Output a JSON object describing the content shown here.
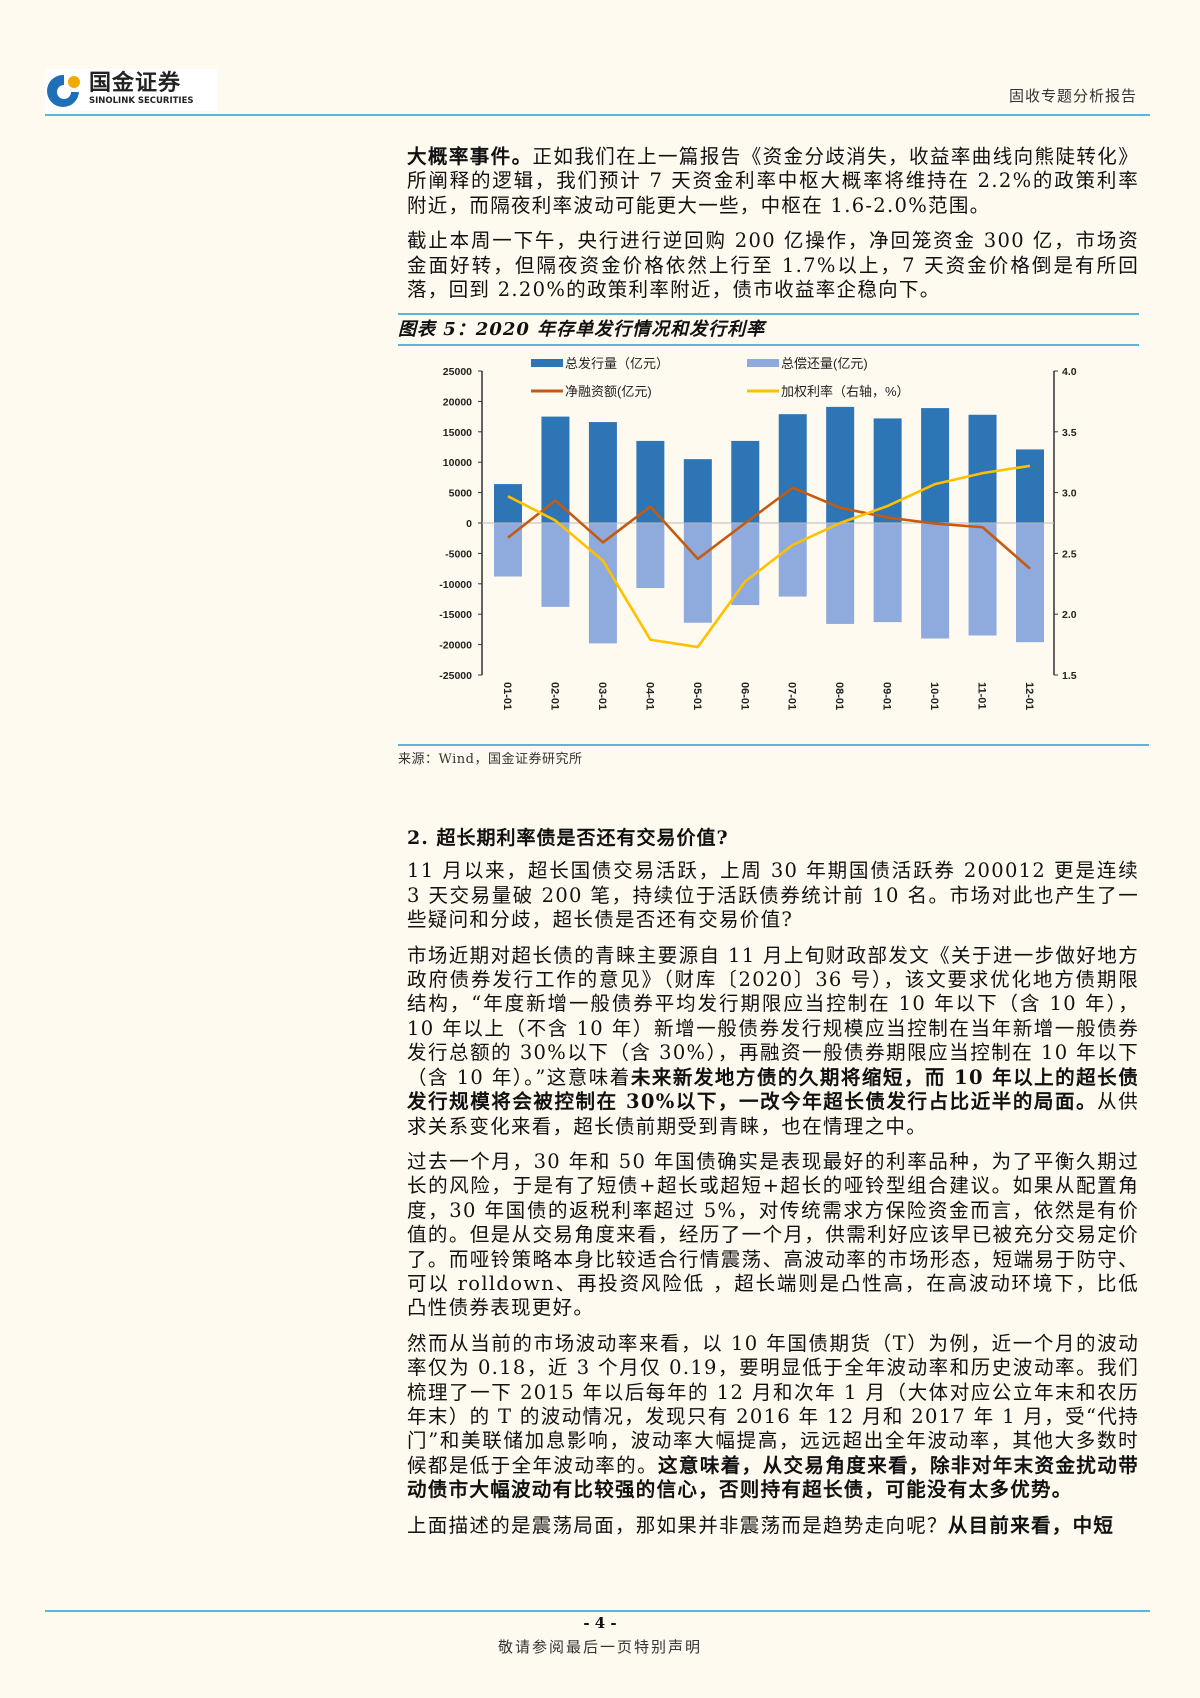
{
  "header": {
    "logo_cn": "国金证券",
    "logo_en": "SINOLINK SECURITIES",
    "report_type": "固收专题分析报告"
  },
  "paragraphs": [
    [
      {
        "t": "大概率事件。",
        "b": true
      },
      {
        "t": "正如我们在上一篇报告《资金分歧消失，收益率曲线向熊陡转化》所阐释的逻辑，我们预计 7 天资金利率中枢大概率将维持在 2.2%的政策利率附近，而隔夜利率波动可能更大一些，中枢在 1.6-2.0%范围。",
        "b": false
      }
    ],
    [
      {
        "t": "截止本周一下午，央行进行逆回购 200 亿操作，净回笼资金 300 亿，市场资金面好转，但隔夜资金价格依然上行至 1.7%以上，7 天资金价格倒是有所回落，回到 2.20%的政策利率附近，债市收益率企稳向下。",
        "b": false
      }
    ],
    [
      {
        "t": "11 月以来，超长国债交易活跃，上周 30 年期国债活跃券 200012 更是连续 3 天交易量破 200 笔，持续位于活跃债券统计前 10 名。市场对此也产生了一些疑问和分歧，超长债是否还有交易价值?",
        "b": false
      }
    ],
    [
      {
        "t": "市场近期对超长债的青睐主要源自 11 月上旬财政部发文《关于进一步做好地方政府债券发行工作的意见》（财库〔2020〕36 号），该文要求优化地方债期限结构，“年度新增一般债券平均发行期限应当控制在 10 年以下（含 10 年），10 年以上（不含 10 年）新增一般债券发行规模应当控制在当年新增一般债券发行总额的 30%以下（含 30%），再融资一般债券期限应当控制在 10 年以下（含 10 年）。”这意味着",
        "b": false
      },
      {
        "t": "未来新发地方债的久期将缩短，而 10 年以上的超长债发行规模将会被控制在 30%以下，一改今年超长债发行占比近半的局面。",
        "b": true
      },
      {
        "t": "从供求关系变化来看，超长债前期受到青睐，也在情理之中。",
        "b": false
      }
    ],
    [
      {
        "t": "过去一个月，30 年和 50 年国债确实是表现最好的利率品种，为了平衡久期过长的风险，于是有了短债+超长或超短+超长的哑铃型组合建议。如果从配置角度，30 年国债的返税利率超过 5%，对传统需求方保险资金而言，依然是有价值的。但是从交易角度来看，经历了一个月，供需利好应该早已被充分交易定价了。而哑铃策略本身比较适合行情震荡、高波动率的市场形态，短端易于防守、可以 rolldown、再投资风险低 ，超长端则是凸性高，在高波动环境下，比低凸性债券表现更好。",
        "b": false
      }
    ],
    [
      {
        "t": "然而从当前的市场波动率来看，以 10 年国债期货（T）为例，近一个月的波动率仅为 0.18，近 3 个月仅 0.19，要明显低于全年波动率和历史波动率。我们梳理了一下 2015 年以后每年的 12 月和次年 1 月（大体对应公立年末和农历年末）的 T 的波动情况，发现只有 2016 年 12 月和 2017 年 1 月，受“代持门”和美联储加息影响，波动率大幅提高，远远超出全年波动率，其他大多数时候都是低于全年波动率的。",
        "b": false
      },
      {
        "t": "这意味着，从交易角度来看，除非对年末资金扰动带动债市大幅波动有比较强的信心，否则持有超长债，可能没有太多优势。",
        "b": true
      }
    ],
    [
      {
        "t": "上面描述的是震荡局面，那如果并非震荡而是趋势走向呢？",
        "b": false
      },
      {
        "t": "从目前来看，中短",
        "b": true
      }
    ]
  ],
  "figure": {
    "caption": "图表 5：2020 年存单发行情况和发行利率",
    "source": "来源：Wind，国金证券研究所"
  },
  "section": {
    "heading": "2. 超长期利率债是否还有交易价值?"
  },
  "footer": {
    "page": "- 4 -",
    "disclaimer": "敬请参阅最后一页特别声明"
  },
  "chart_data": {
    "type": "bar+line",
    "categories": [
      "01-01",
      "02-01",
      "03-01",
      "04-01",
      "05-01",
      "06-01",
      "07-01",
      "08-01",
      "09-01",
      "10-01",
      "11-01",
      "12-01"
    ],
    "series": [
      {
        "name": "总发行量（亿元）",
        "type": "bar",
        "axis": "left",
        "color": "#2e75b6",
        "values": [
          6400,
          17500,
          16600,
          13500,
          10500,
          13500,
          17900,
          19100,
          17200,
          18900,
          17800,
          12100
        ]
      },
      {
        "name": "总偿还量(亿元)",
        "type": "bar",
        "axis": "left",
        "color": "#8faadc",
        "values": [
          -8800,
          -13800,
          -19800,
          -10700,
          -16400,
          -13500,
          -12100,
          -16600,
          -16300,
          -19000,
          -18500,
          -19600
        ]
      },
      {
        "name": "净融资额(亿元)",
        "type": "line",
        "axis": "left",
        "color": "#c55a11",
        "values": [
          -2400,
          3700,
          -3200,
          2700,
          -5900,
          0,
          5800,
          2500,
          900,
          -100,
          -700,
          -7500
        ]
      },
      {
        "name": "加权利率（右轴，%）",
        "type": "line",
        "axis": "right",
        "color": "#ffc000",
        "values": [
          2.97,
          2.77,
          2.44,
          1.79,
          1.73,
          2.27,
          2.57,
          2.75,
          2.89,
          3.07,
          3.16,
          3.22
        ]
      }
    ],
    "y_left": {
      "min": -25000,
      "max": 25000,
      "ticks": [
        25000,
        20000,
        15000,
        10000,
        5000,
        0,
        -5000,
        -10000,
        -15000,
        -20000,
        -25000
      ]
    },
    "y_right": {
      "min": 1.5,
      "max": 4.0,
      "ticks": [
        "4.0",
        "3.5",
        "3.0",
        "2.5",
        "2.0",
        "1.5"
      ]
    },
    "grid": false,
    "legend": "top"
  }
}
